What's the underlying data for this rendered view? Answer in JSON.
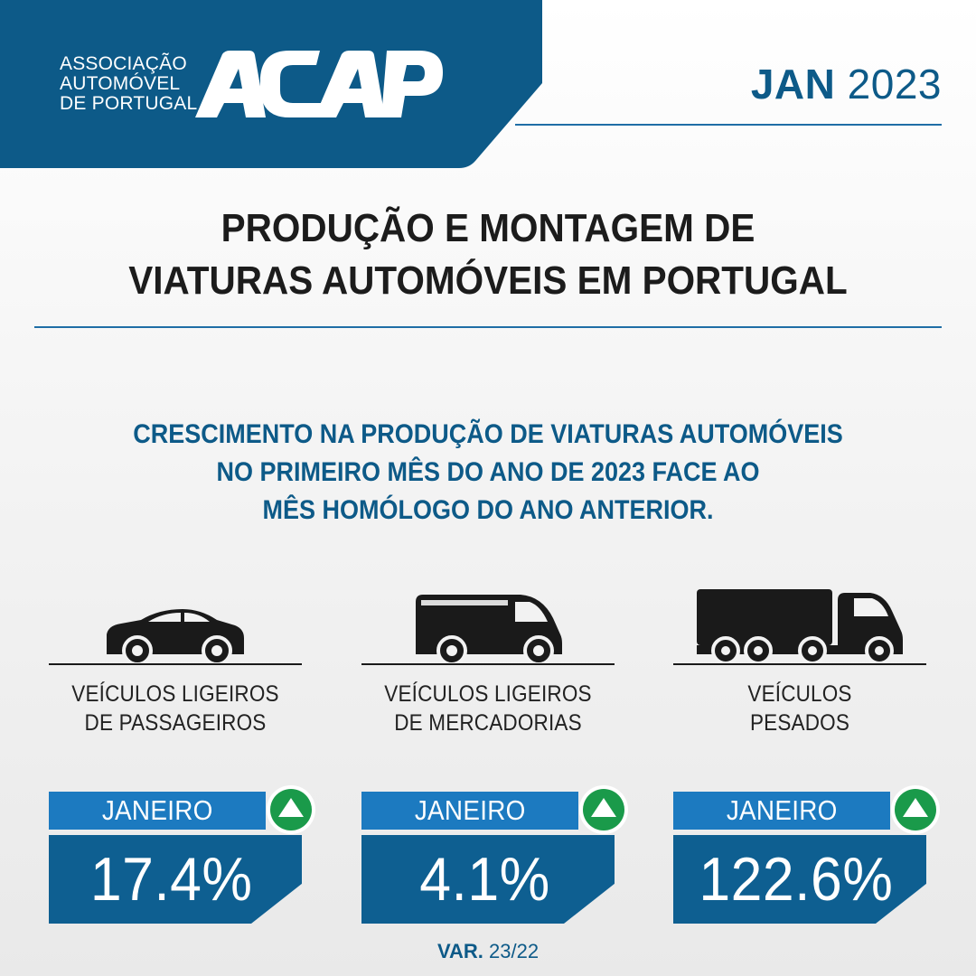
{
  "header": {
    "association_lines": [
      "ASSOCIAÇÃO",
      "AUTOMÓVEL",
      "DE PORTUGAL"
    ],
    "logo_text": "ACAP",
    "brand_color": "#0d5a88",
    "month": "JAN",
    "year": "2023"
  },
  "title_lines": [
    "PRODUÇÃO E MONTAGEM DE",
    "VIATURAS AUTOMÓVEIS EM PORTUGAL"
  ],
  "subtitle_lines": [
    "CRESCIMENTO NA PRODUÇÃO DE VIATURAS AUTOMÓVEIS",
    "NO PRIMEIRO MÊS DO ANO DE 2023 FACE AO",
    "MÊS HOMÓLOGO DO ANO ANTERIOR."
  ],
  "columns": [
    {
      "icon": "car-icon",
      "label_lines": [
        "VEÍCULOS LIGEIROS",
        "DE PASSAGEIROS"
      ],
      "period": "JANEIRO",
      "trend_icon": "arrow-up-icon",
      "value": "17.4%"
    },
    {
      "icon": "van-icon",
      "label_lines": [
        "VEÍCULOS LIGEIROS",
        "DE MERCADORIAS"
      ],
      "period": "JANEIRO",
      "trend_icon": "arrow-up-icon",
      "value": "4.1%"
    },
    {
      "icon": "truck-icon",
      "label_lines": [
        "VEÍCULOS",
        "PESADOS"
      ],
      "period": "JANEIRO",
      "trend_icon": "arrow-up-icon",
      "value": "122.6%"
    }
  ],
  "footnote": {
    "bold": "VAR.",
    "regular": "23/22"
  },
  "colors": {
    "accent_blue": "#1c7ac0",
    "dark_blue": "#0e5f91",
    "up_green": "#1a9a4a"
  }
}
